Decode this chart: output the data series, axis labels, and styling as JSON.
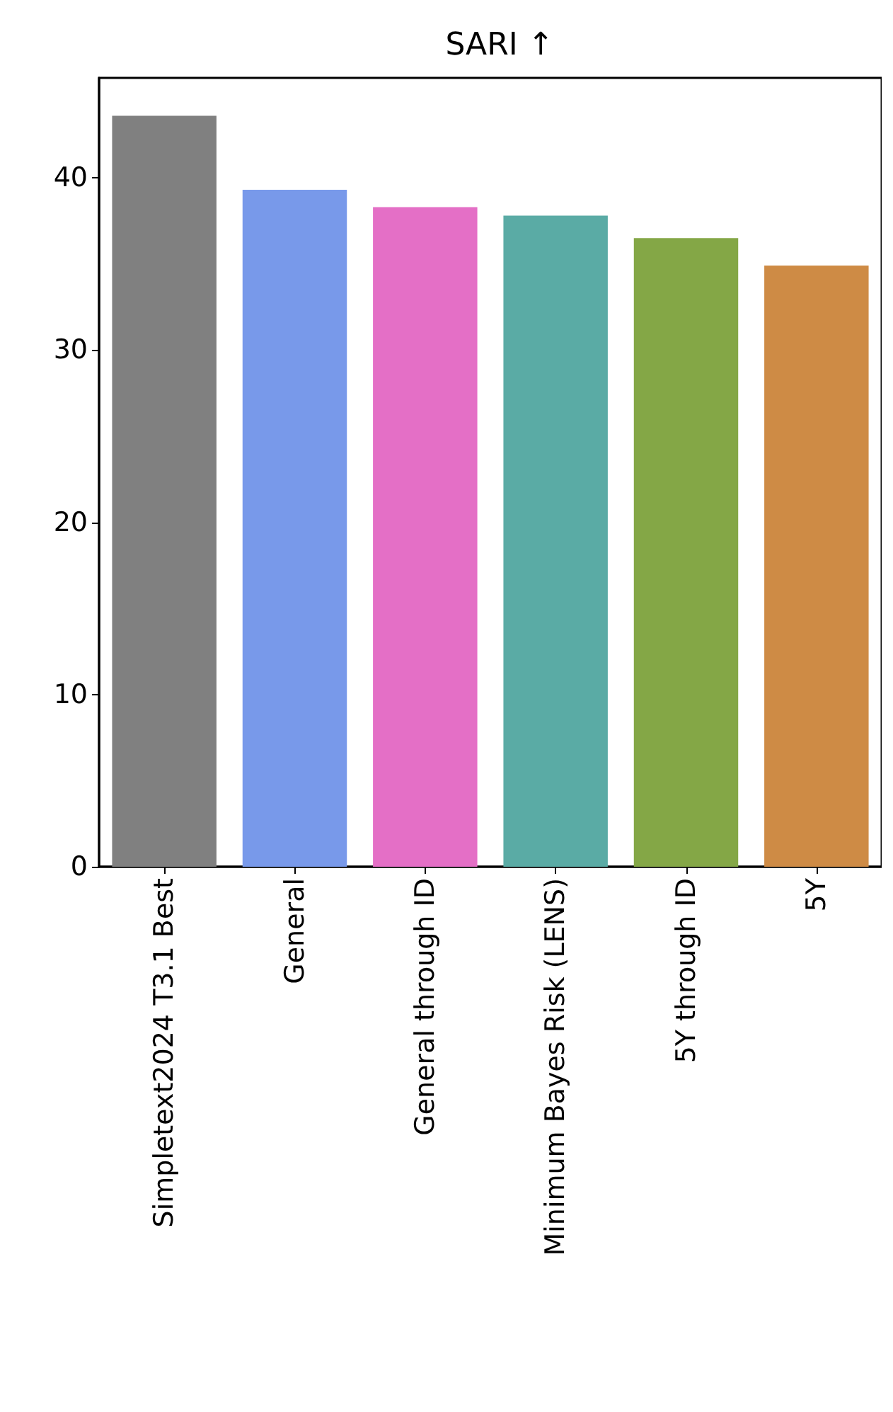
{
  "chart_data": {
    "type": "bar",
    "title": "SARI ↑",
    "categories": [
      "Simpletext2024 T3.1 Best",
      "General",
      "General through ID",
      "Minimum Bayes Risk (LENS)",
      "5Y through ID",
      "5Y"
    ],
    "values": [
      43.6,
      39.3,
      38.3,
      37.8,
      36.5,
      34.9
    ],
    "colors": [
      "#808080",
      "#7899ea",
      "#e46fc6",
      "#5aaba5",
      "#84a746",
      "#ce8b45"
    ],
    "ylim": [
      0,
      45.8
    ],
    "yticks": [
      0,
      10,
      20,
      30,
      40
    ],
    "grid": false
  }
}
